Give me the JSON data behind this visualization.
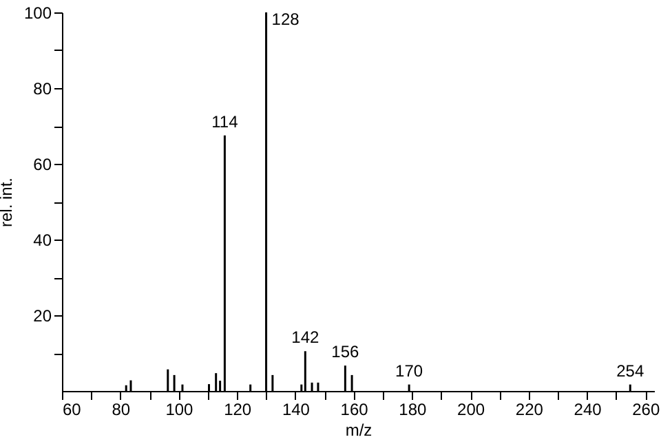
{
  "chart_data": {
    "type": "bar",
    "xlabel": "m/z",
    "ylabel": "rel. int.",
    "x": [
      82,
      83.6,
      96.3,
      98.5,
      101.3,
      110.4,
      112.8,
      114.2,
      115.8,
      124.6,
      130,
      132.2,
      142.1,
      143.4,
      145.7,
      147.8,
      157.1,
      159.4,
      179,
      254.8
    ],
    "values": [
      1.5,
      2.8,
      5.7,
      4.2,
      1.7,
      1.8,
      4.7,
      2.7,
      67.5,
      1.7,
      100,
      4.2,
      1.7,
      10.5,
      2.2,
      2.2,
      6.7,
      4.2,
      1.7,
      1.7
    ],
    "color": "#000000",
    "xlim": [
      60,
      263
    ],
    "xticks": [
      60,
      {
        "value": 70,
        "label": null
      },
      80,
      {
        "value": 90,
        "label": null
      },
      100,
      {
        "value": 110,
        "label": null
      },
      120,
      {
        "value": 130,
        "label": null
      },
      140,
      {
        "value": 150,
        "label": null
      },
      160,
      {
        "value": 170,
        "label": null
      },
      180,
      {
        "value": 190,
        "label": null
      },
      200,
      {
        "value": 210,
        "label": null
      },
      220,
      {
        "value": 230,
        "label": null
      },
      240,
      {
        "value": 250,
        "label": null
      },
      260
    ],
    "ylim": [
      0,
      100
    ],
    "yticks": [
      {
        "value": 10,
        "label": null
      },
      20,
      {
        "value": 30,
        "label": null
      },
      40,
      {
        "value": 50,
        "label": null
      },
      60,
      {
        "value": 70,
        "label": null
      },
      80,
      {
        "value": 90,
        "label": null
      },
      100
    ],
    "grid": false,
    "annotations": [
      {
        "text": "114",
        "x": 115.8,
        "y": 67.5
      },
      {
        "text": "128",
        "x": 130,
        "y": 100
      },
      {
        "text": "142",
        "x": 143.4,
        "y": 10.5
      },
      {
        "text": "156",
        "x": 157.1,
        "y": 6.7
      },
      {
        "text": "170",
        "x": 179,
        "y": 1.7
      },
      {
        "text": "254",
        "x": 254.8,
        "y": 1.7
      }
    ]
  }
}
